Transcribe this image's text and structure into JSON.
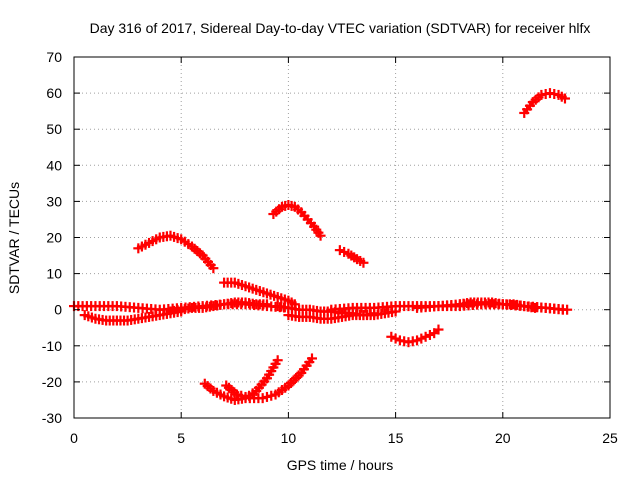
{
  "chart_data": {
    "type": "scatter",
    "title": "Day 316 of 2017, Sidereal Day-to-day VTEC variation (SDTVAR) for receiver hlfx",
    "xlabel": "GPS time / hours",
    "ylabel": "SDTVAR / TECUs",
    "xlim": [
      0,
      25
    ],
    "ylim": [
      -30,
      70
    ],
    "xticks": [
      0,
      5,
      10,
      15,
      20,
      25
    ],
    "yticks": [
      -30,
      -20,
      -10,
      0,
      10,
      20,
      30,
      40,
      50,
      60,
      70
    ],
    "xtick_labels": [
      "0",
      "5",
      "10",
      "15",
      "20",
      "25"
    ],
    "ytick_labels": [
      "-30",
      "-20",
      "-10",
      "0",
      "10",
      "20",
      "30",
      "40",
      "50",
      "60",
      "70"
    ],
    "grid": true,
    "legend": "none",
    "marker": "plus",
    "color": "#ff0000",
    "series": [
      {
        "name": "arc-1",
        "x": [
          3.0,
          3.5,
          4.0,
          4.5,
          5.0,
          5.5,
          6.0,
          6.5
        ],
        "y": [
          17,
          18.5,
          20,
          20.5,
          19.5,
          17.5,
          15,
          11.5
        ]
      },
      {
        "name": "arc-2",
        "x": [
          9.3,
          9.7,
          10.0,
          10.3,
          10.6,
          10.9,
          11.2,
          11.5
        ],
        "y": [
          26.5,
          28.5,
          29,
          28.5,
          27,
          25,
          23,
          20.5
        ]
      },
      {
        "name": "arc-3",
        "x": [
          12.4,
          12.8,
          13.2,
          13.5
        ],
        "y": [
          16.5,
          15.5,
          14,
          13
        ]
      },
      {
        "name": "arc-4",
        "x": [
          21.0,
          21.4,
          21.8,
          22.2,
          22.6,
          22.9
        ],
        "y": [
          54.5,
          57.5,
          59.5,
          60,
          59.5,
          58.5
        ]
      },
      {
        "name": "arc-5",
        "x": [
          6.1,
          6.5,
          7.0,
          7.5,
          8.0,
          8.5,
          9.0,
          9.5
        ],
        "y": [
          -20.5,
          -22.5,
          -24,
          -25,
          -24.5,
          -22.5,
          -19,
          -14
        ]
      },
      {
        "name": "arc-6",
        "x": [
          7.1,
          7.6,
          8.2,
          8.8,
          9.4,
          10.0,
          10.6,
          11.1
        ],
        "y": [
          -21,
          -23.5,
          -24.5,
          -24.5,
          -23.5,
          -21,
          -17.5,
          -13.5
        ]
      },
      {
        "name": "arc-7",
        "x": [
          14.8,
          15.2,
          15.6,
          16.0,
          16.4,
          16.8,
          17.0
        ],
        "y": [
          -7.5,
          -8.5,
          -9,
          -8.5,
          -7.5,
          -6.5,
          -5.5
        ]
      },
      {
        "name": "arc-8",
        "x": [
          7.0,
          7.5,
          8.0,
          8.5,
          9.0,
          9.5,
          10.0,
          10.3
        ],
        "y": [
          7.5,
          7.5,
          6.5,
          5.5,
          4.5,
          3.5,
          2.5,
          1.5
        ]
      },
      {
        "name": "arc-9",
        "x": [
          0.5,
          1.0,
          1.5,
          2.0,
          2.5,
          3.0,
          3.5,
          4.0,
          4.5,
          5.0
        ],
        "y": [
          -1.5,
          -2.5,
          -3,
          -3,
          -3,
          -2.5,
          -2,
          -1.5,
          -1,
          -0.5
        ]
      },
      {
        "name": "arc-10",
        "x": [
          0.0,
          1.0,
          2.0,
          3.0,
          4.0,
          5.0,
          6.0,
          7.0,
          8.0,
          9.0,
          10.0
        ],
        "y": [
          1,
          1,
          1,
          0.5,
          0,
          0.5,
          1,
          1.5,
          1.5,
          1,
          0.5
        ]
      },
      {
        "name": "arc-11",
        "x": [
          4.5,
          5.0,
          5.5,
          6.0,
          6.5,
          7.0,
          7.5,
          8.0,
          8.5,
          9.0
        ],
        "y": [
          -0.5,
          0,
          0.5,
          0.5,
          1,
          1.5,
          2,
          2,
          1.5,
          1.5
        ]
      },
      {
        "name": "arc-12",
        "x": [
          9.5,
          10.0,
          10.5,
          11.0,
          11.5,
          12.0,
          12.5,
          13.0,
          13.5,
          14.0,
          14.5,
          15.0
        ],
        "y": [
          1,
          0.5,
          0,
          0,
          -0.5,
          -0.5,
          -1,
          -1,
          -1.5,
          -1.5,
          -1,
          -0.5
        ]
      },
      {
        "name": "arc-13",
        "x": [
          10.0,
          10.5,
          11.0,
          11.5,
          12.0,
          12.5,
          13.0,
          13.5,
          14.0
        ],
        "y": [
          -1.5,
          -2,
          -2,
          -2.5,
          -2.5,
          -2,
          -1.5,
          -1.5,
          -1
        ]
      },
      {
        "name": "arc-14",
        "x": [
          12.0,
          13.0,
          14.0,
          15.0,
          16.0,
          17.0,
          18.0,
          19.0,
          20.0,
          21.0,
          22.0,
          23.0
        ],
        "y": [
          0,
          0.5,
          0.5,
          1,
          1,
          1,
          1.5,
          1.5,
          1.5,
          1,
          0.5,
          0
        ]
      },
      {
        "name": "arc-15",
        "x": [
          16.0,
          17.0,
          18.0,
          19.0,
          20.0,
          21.0,
          22.0,
          22.8
        ],
        "y": [
          0.5,
          1,
          1,
          1.5,
          1.5,
          1,
          0.5,
          0
        ]
      },
      {
        "name": "arc-16",
        "x": [
          18.0,
          18.5,
          19.0,
          19.5,
          20.0,
          20.5,
          21.0,
          21.5
        ],
        "y": [
          1.5,
          2,
          2,
          2,
          1.5,
          1.5,
          1,
          0.5
        ]
      }
    ]
  }
}
